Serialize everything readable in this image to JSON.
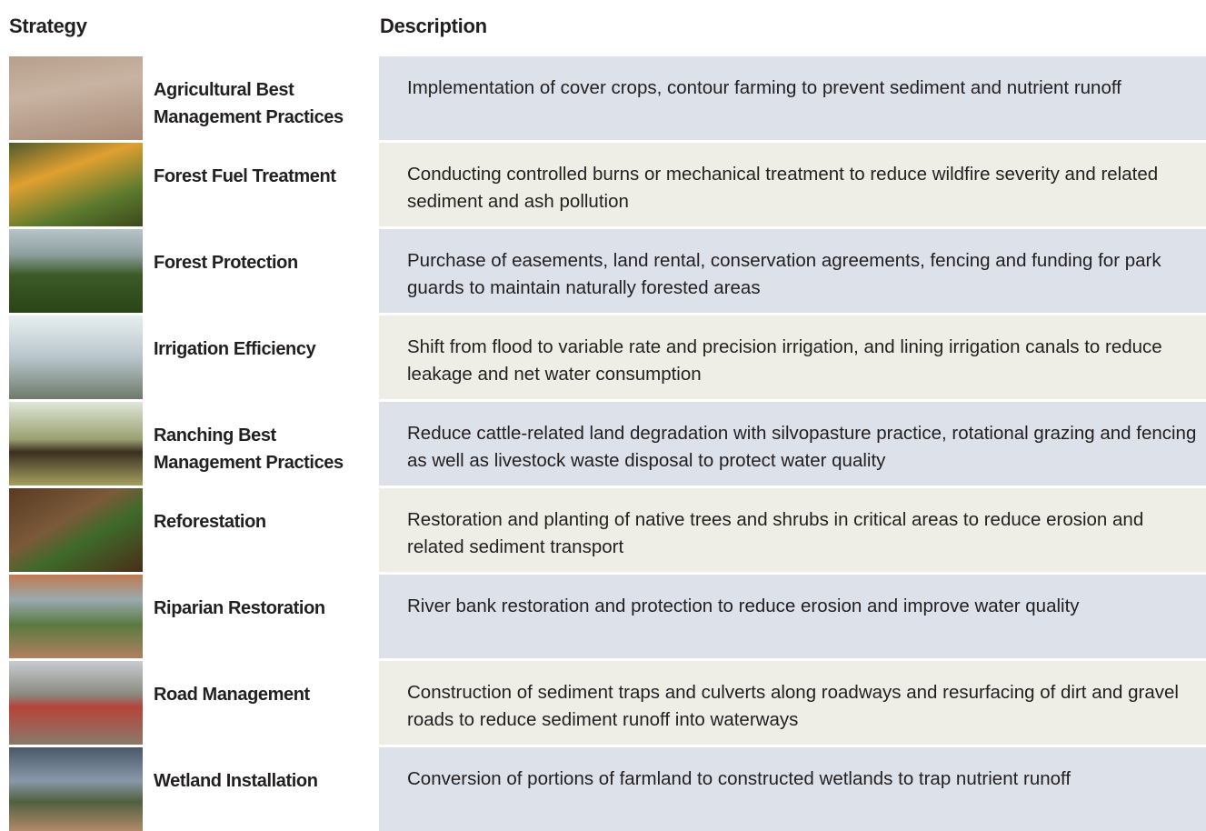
{
  "header": {
    "strategy": "Strategy",
    "description": "Description"
  },
  "rows": [
    {
      "strategy": "Agricultural Best Management Practices",
      "description": "Implementation of cover crops, contour farming  to prevent sediment and nutrient runoff"
    },
    {
      "strategy": "Forest Fuel Treatment",
      "description": "Conducting controlled burns or mechanical treatment to reduce wildfire severity and related sediment and ash pollution"
    },
    {
      "strategy": "Forest Protection",
      "description": "Purchase of easements, land rental, conservation agreements, fencing and funding for park guards to maintain naturally forested areas"
    },
    {
      "strategy": "Irrigation Efficiency",
      "description": "Shift from flood to variable rate and precision irrigation, and lining irrigation canals to reduce leakage and net water consumption"
    },
    {
      "strategy": "Ranching Best Management Practices",
      "description": "Reduce cattle-related land degradation with silvopasture practice, rotational grazing and fencing as well as livestock waste disposal to protect water quality"
    },
    {
      "strategy": "Reforestation",
      "description": "Restoration and planting of native trees and shrubs in critical areas to reduce erosion and related sediment transport"
    },
    {
      "strategy": "Riparian Restoration",
      "description": "River bank restoration and protection to reduce erosion and improve water quality"
    },
    {
      "strategy": "Road Management",
      "description": "Construction of sediment traps and culverts along roadways and resurfacing of dirt and gravel roads to reduce sediment runoff into waterways"
    },
    {
      "strategy": "Wetland Installation",
      "description": "Conversion of portions of farmland to constructed wetlands to trap nutrient runoff"
    }
  ]
}
